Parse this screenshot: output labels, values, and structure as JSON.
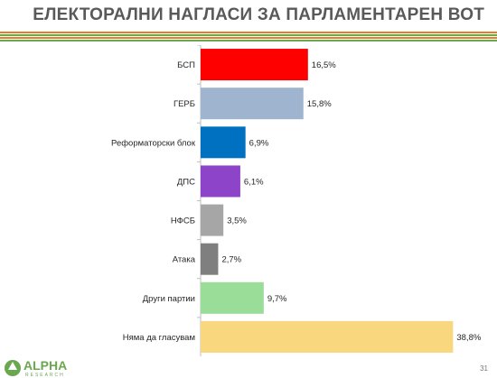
{
  "title": "ЕЛЕКТОРАЛНИ НАГЛАСИ ЗА ПАРЛАМЕНТАРЕН ВОТ",
  "footer": {
    "logo_word": "ALPHA",
    "logo_sub": "RESEARCH",
    "page_number": "31"
  },
  "colors": {
    "deco_orange": "#e67e22",
    "deco_green": "#6aa84f",
    "title": "#595959"
  },
  "chart_data": {
    "type": "bar",
    "orientation": "horizontal",
    "categories": [
      "БСП",
      "ГЕРБ",
      "Реформаторски блок",
      "ДПС",
      "НФСБ",
      "Атака",
      "Други партии",
      "Няма да гласувам"
    ],
    "values": [
      16.5,
      15.8,
      6.9,
      6.1,
      3.5,
      2.7,
      9.7,
      38.8
    ],
    "value_labels": [
      "16,5%",
      "15,8%",
      "6,9%",
      "6,1%",
      "3,5%",
      "2,7%",
      "9,7%",
      "38,8%"
    ],
    "colors": [
      "#ff0000",
      "#9fb5cf",
      "#0070c0",
      "#8e44c8",
      "#a6a6a6",
      "#7f7f7f",
      "#99dd99",
      "#f9d77e"
    ],
    "xlim": [
      0,
      40
    ],
    "grid": false,
    "legend": "none"
  }
}
